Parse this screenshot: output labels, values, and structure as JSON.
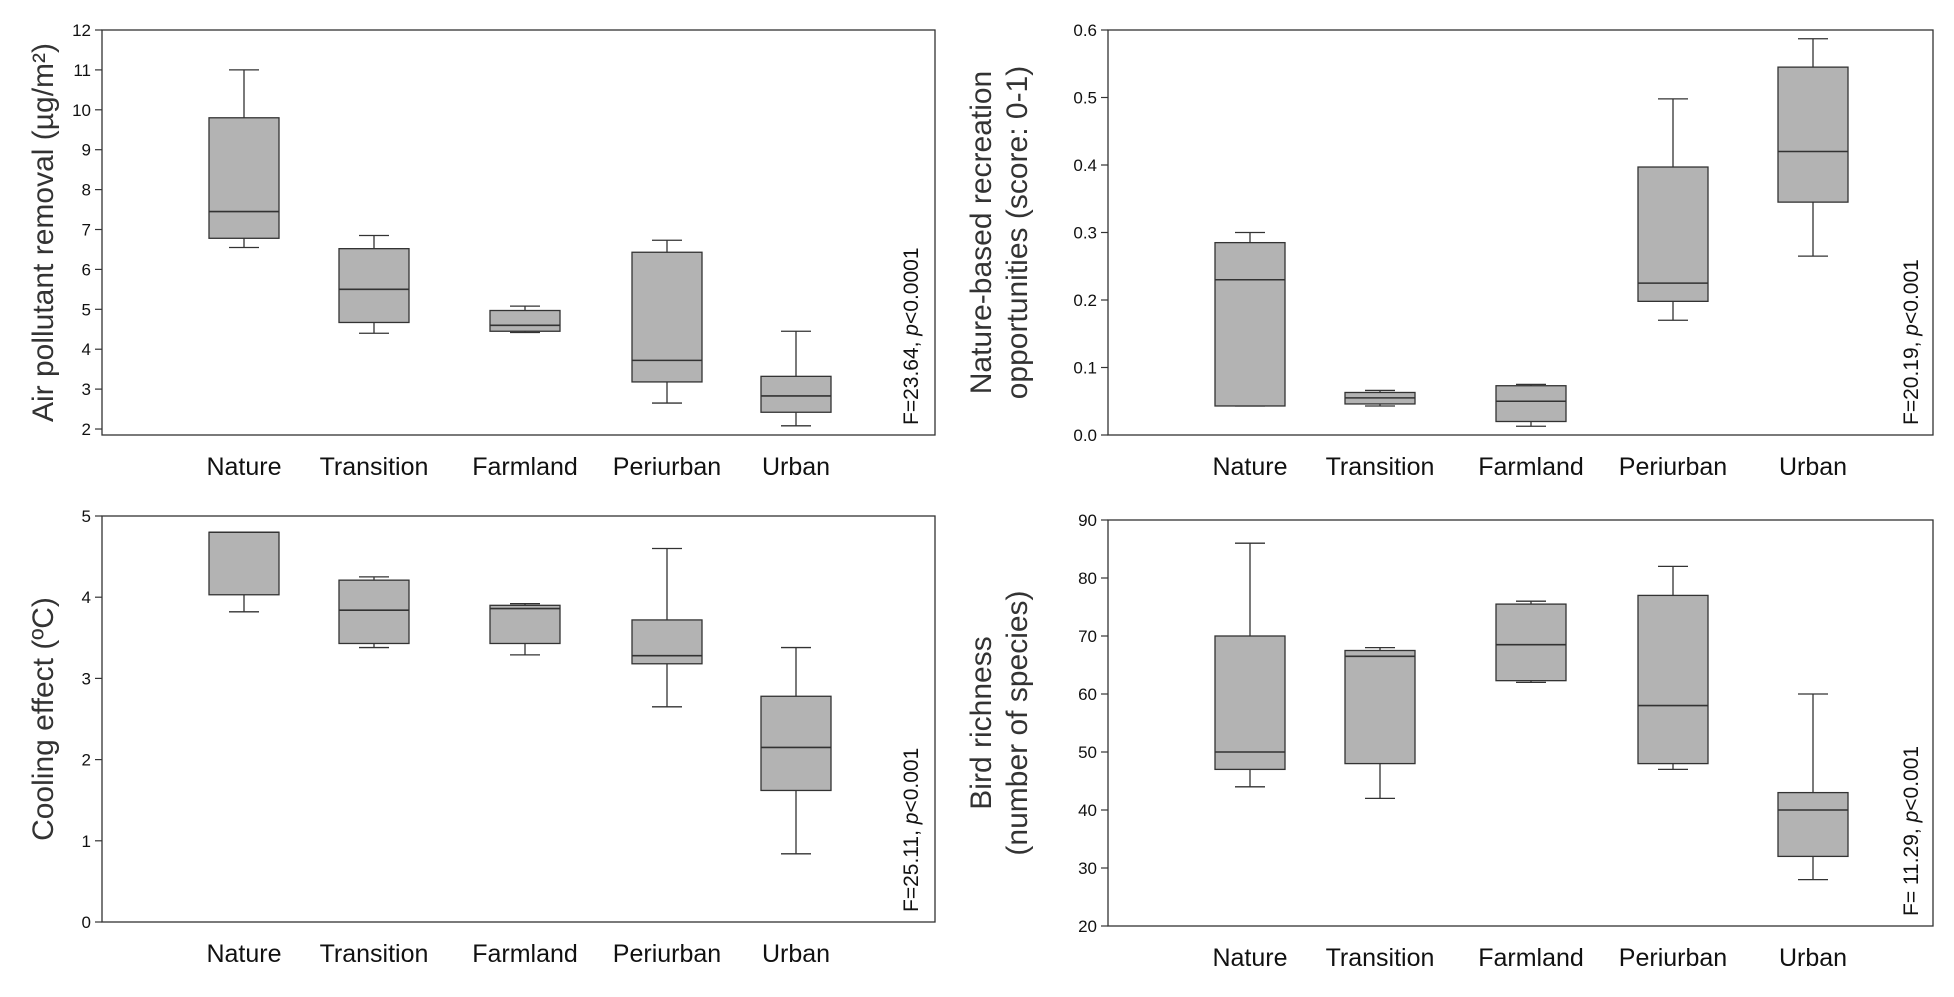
{
  "colors": {
    "box_fill": "#b3b3b3",
    "stroke": "#333333",
    "text": "#111111"
  },
  "chart_data": [
    {
      "type": "box",
      "panel": "top-left",
      "categories": [
        "Nature",
        "Transition",
        "Farmland",
        "Periurban",
        "Urban"
      ],
      "ylabel": "Air pollutant removal (µg/m²)",
      "ylim": [
        1.85,
        12
      ],
      "yticks": [
        2,
        3,
        4,
        5,
        6,
        7,
        8,
        9,
        10,
        11,
        12
      ],
      "boxes": [
        {
          "whisker_low": 6.55,
          "q1": 6.78,
          "median": 7.45,
          "q3": 9.8,
          "whisker_high": 11.0
        },
        {
          "whisker_low": 4.4,
          "q1": 4.67,
          "median": 5.5,
          "q3": 6.52,
          "whisker_high": 6.85
        },
        {
          "whisker_low": 4.42,
          "q1": 4.45,
          "median": 4.6,
          "q3": 4.97,
          "whisker_high": 5.08
        },
        {
          "whisker_low": 2.65,
          "q1": 3.18,
          "median": 3.72,
          "q3": 6.43,
          "whisker_high": 6.73
        },
        {
          "whisker_low": 2.08,
          "q1": 2.42,
          "median": 2.83,
          "q3": 3.32,
          "whisker_high": 4.45
        }
      ],
      "stat": {
        "prefix": "F=23.64, ",
        "p_symbol": "p",
        "suffix": "<0.0001"
      }
    },
    {
      "type": "box",
      "panel": "top-right",
      "categories": [
        "Nature",
        "Transition",
        "Farmland",
        "Periurban",
        "Urban"
      ],
      "ylabel_lines": [
        "Nature-based recreation",
        "opportunities (score: 0-1)"
      ],
      "ylim": [
        0,
        0.6
      ],
      "yticks": [
        "0.0",
        "0.1",
        "0.2",
        "0.3",
        "0.4",
        "0.5",
        "0.6"
      ],
      "boxes": [
        {
          "whisker_low": 0.043,
          "q1": 0.043,
          "median": 0.23,
          "q3": 0.285,
          "whisker_high": 0.3
        },
        {
          "whisker_low": 0.043,
          "q1": 0.046,
          "median": 0.055,
          "q3": 0.063,
          "whisker_high": 0.066
        },
        {
          "whisker_low": 0.013,
          "q1": 0.02,
          "median": 0.05,
          "q3": 0.073,
          "whisker_high": 0.075
        },
        {
          "whisker_low": 0.17,
          "q1": 0.198,
          "median": 0.225,
          "q3": 0.397,
          "whisker_high": 0.498
        },
        {
          "whisker_low": 0.265,
          "q1": 0.345,
          "median": 0.42,
          "q3": 0.545,
          "whisker_high": 0.587
        }
      ],
      "stat": {
        "prefix": "F=20.19, ",
        "p_symbol": "p",
        "suffix": "<0.001"
      }
    },
    {
      "type": "box",
      "panel": "bottom-left",
      "categories": [
        "Nature",
        "Transition",
        "Farmland",
        "Periurban",
        "Urban"
      ],
      "ylabel": "Cooling effect (ºC)",
      "ylim": [
        0,
        5
      ],
      "yticks": [
        0,
        1,
        2,
        3,
        4,
        5
      ],
      "boxes": [
        {
          "whisker_low": 3.82,
          "q1": 4.03,
          "median": 4.8,
          "q3": 4.8,
          "whisker_high": 4.8
        },
        {
          "whisker_low": 3.38,
          "q1": 3.43,
          "median": 3.84,
          "q3": 4.21,
          "whisker_high": 4.25
        },
        {
          "whisker_low": 3.29,
          "q1": 3.43,
          "median": 3.86,
          "q3": 3.9,
          "whisker_high": 3.92
        },
        {
          "whisker_low": 2.65,
          "q1": 3.18,
          "median": 3.28,
          "q3": 3.72,
          "whisker_high": 4.6
        },
        {
          "whisker_low": 0.84,
          "q1": 1.62,
          "median": 2.15,
          "q3": 2.78,
          "whisker_high": 3.38
        }
      ],
      "stat": {
        "prefix": "F=25.11, ",
        "p_symbol": "p",
        "suffix": "<0.001"
      }
    },
    {
      "type": "box",
      "panel": "bottom-right",
      "categories": [
        "Nature",
        "Transition",
        "Farmland",
        "Periurban",
        "Urban"
      ],
      "ylabel_lines": [
        "Bird richness",
        "(number of species)"
      ],
      "ylim": [
        20,
        90
      ],
      "yticks": [
        20,
        30,
        40,
        50,
        60,
        70,
        80,
        90
      ],
      "boxes": [
        {
          "whisker_low": 44,
          "q1": 47,
          "median": 50,
          "q3": 70,
          "whisker_high": 86
        },
        {
          "whisker_low": 42,
          "q1": 48,
          "median": 66.5,
          "q3": 67.5,
          "whisker_high": 68
        },
        {
          "whisker_low": 62,
          "q1": 62.3,
          "median": 68.5,
          "q3": 75.5,
          "whisker_high": 76
        },
        {
          "whisker_low": 47,
          "q1": 48,
          "median": 58,
          "q3": 77,
          "whisker_high": 82
        },
        {
          "whisker_low": 28,
          "q1": 32,
          "median": 40,
          "q3": 43,
          "whisker_high": 60
        }
      ],
      "stat": {
        "prefix": "F= 11.29, ",
        "p_symbol": "p",
        "suffix": "<0.001"
      }
    }
  ]
}
